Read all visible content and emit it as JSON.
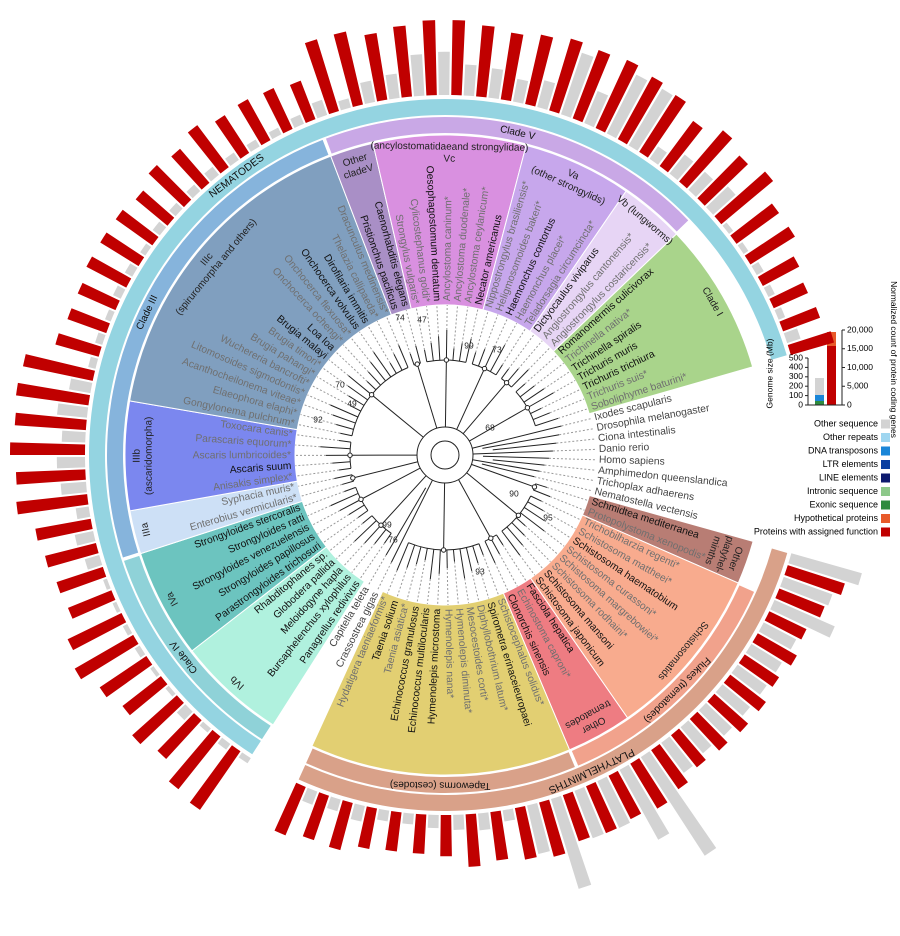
{
  "sectors": [
    {
      "species": [
        {
          "name": "Ixodes scapularis"
        },
        {
          "name": "Drosophila melanogaster"
        },
        {
          "name": "Ciona intestinalis"
        },
        {
          "name": "Danio rerio"
        },
        {
          "name": "Homo sapiens"
        },
        {
          "name": "Amphimedon queenslandica"
        },
        {
          "name": "Trichoplax adhaerens"
        },
        {
          "name": "Nematostella vectensis"
        }
      ]
    },
    {
      "label": [
        "Other",
        "platyhel-",
        "minths"
      ],
      "color": "#b87d74",
      "species": [
        {
          "name": "Schmidtea mediterranea",
          "genome_mb": 780,
          "genes": 16000
        },
        {
          "name": "Protopolystoma xenopodis*",
          "genome_mb": 550,
          "genes": 13000
        }
      ]
    },
    {
      "label": [
        "Schistosomatids"
      ],
      "color": "#f8ab8e",
      "species": [
        {
          "name": "Trichobilharzia regenti*",
          "genome_mb": 700,
          "genes": 11000
        },
        {
          "name": "Schistosoma mattheei*",
          "genome_mb": 390,
          "genes": 12000
        },
        {
          "name": "Schistosoma haematobium",
          "genome_mb": 380,
          "genes": 11000
        },
        {
          "name": "Schistosoma curassoni*",
          "genome_mb": 380,
          "genes": 12000
        },
        {
          "name": "Schistosoma margrebowiei*",
          "genome_mb": 380,
          "genes": 12000
        },
        {
          "name": "Schistosoma rodhaini*",
          "genome_mb": 380,
          "genes": 11500
        },
        {
          "name": "Schistosoma mansoni",
          "genome_mb": 365,
          "genes": 11000
        },
        {
          "name": "Schistosoma japonicum",
          "genome_mb": 400,
          "genes": 12700
        }
      ]
    },
    {
      "label": [
        "Other",
        "trematodes"
      ],
      "color": "#ee7c82",
      "species": [
        {
          "name": "Fasciola hepatica",
          "genome_mb": 1250,
          "genes": 14000
        },
        {
          "name": "Echinostoma caproni*",
          "genome_mb": 850,
          "genes": 13000
        },
        {
          "name": "Clonorchis sinensis",
          "genome_mb": 550,
          "genes": 13600
        }
      ]
    },
    {
      "color": "#e2cf72",
      "species": [
        {
          "name": "Schistocephalus solidus*",
          "genome_mb": 540,
          "genes": 13000
        },
        {
          "name": "Spirometra erinaceieuropaei",
          "genome_mb": 1000,
          "genes": 15000
        },
        {
          "name": "Diphyllobothrium latum*",
          "genome_mb": 530,
          "genes": 14000
        },
        {
          "name": "Mesocestoides corti*",
          "genome_mb": 120,
          "genes": 13000
        },
        {
          "name": "Hymenolepis diminuta*",
          "genome_mb": 180,
          "genes": 14000
        },
        {
          "name": "Hymenolepis nana*",
          "genome_mb": 160,
          "genes": 11000
        },
        {
          "name": "Hymenolepis microstoma",
          "genome_mb": 140,
          "genes": 10500
        },
        {
          "name": "Echinococcus multilocularis",
          "genome_mb": 115,
          "genes": 10500
        },
        {
          "name": "Echinococcus granulosus",
          "genome_mb": 115,
          "genes": 11000
        },
        {
          "name": "Taenia asiatica*",
          "genome_mb": 170,
          "genes": 13000
        },
        {
          "name": "Taenia solium",
          "genome_mb": 130,
          "genes": 12500
        },
        {
          "name": "Hydatigera taeniaeformis*",
          "genome_mb": 150,
          "genes": 14000
        }
      ]
    },
    {
      "species": [
        {
          "name": "Crassostrea gigas"
        },
        {
          "name": "Capitella teleta"
        }
      ]
    },
    {
      "label": [
        "IVb"
      ],
      "color": "#b0f1de",
      "species": [
        {
          "name": "Panagrellus redivivus",
          "genome_mb": 65,
          "genes": 19000
        },
        {
          "name": "Bursaphelenchus xylophilus",
          "genome_mb": 75,
          "genes": 18000
        },
        {
          "name": "Meloidogyne hapla",
          "genome_mb": 55,
          "genes": 14000
        },
        {
          "name": "Globodera pallida",
          "genome_mb": 125,
          "genes": 16000
        },
        {
          "name": "Rhabditophanes sp.",
          "genome_mb": 45,
          "genes": 13000
        }
      ]
    },
    {
      "label": [
        "IVa"
      ],
      "color": "#6cc4bf",
      "species": [
        {
          "name": "Parastrongyloides trichosuri",
          "genome_mb": 42,
          "genes": 15000
        },
        {
          "name": "Strongyloides papillosus",
          "genome_mb": 60,
          "genes": 18000
        },
        {
          "name": "Strongyloides venezuelensis",
          "genome_mb": 52,
          "genes": 16000
        },
        {
          "name": "Strongyloides ratti",
          "genome_mb": 43,
          "genes": 12500
        },
        {
          "name": "Strongyloides stercoralis",
          "genome_mb": 43,
          "genes": 13000
        }
      ]
    },
    {
      "label": [
        "IIIa"
      ],
      "color": "#cde0f6",
      "species": [
        {
          "name": "Enterobius vermicularis*",
          "genome_mb": 160,
          "genes": 14000
        },
        {
          "name": "Syphacia muris*",
          "genome_mb": 200,
          "genes": 15000
        }
      ]
    },
    {
      "label": [
        "IIIb",
        "(ascaridomorpha)"
      ],
      "color": "#7b87ef",
      "species": [
        {
          "name": "Anisakis simplex*",
          "genome_mb": 140,
          "genes": 19000
        },
        {
          "name": "Ascaris suum",
          "genome_mb": 270,
          "genes": 18500
        },
        {
          "name": "Ascaris lumbricoides*",
          "genome_mb": 300,
          "genes": 20000
        },
        {
          "name": "Parascaris equorum*",
          "genome_mb": 250,
          "genes": 19000
        },
        {
          "name": "Toxocara canis*",
          "genome_mb": 320,
          "genes": 19500
        }
      ]
    },
    {
      "label": [
        "IIIc",
        "(spiruromorpha and others)"
      ],
      "color": "#809fbf",
      "species": [
        {
          "name": "Gongylonema pulchrum*",
          "genome_mb": 230,
          "genes": 19000
        },
        {
          "name": "Elaeophora elaphi*",
          "genome_mb": 80,
          "genes": 12000
        },
        {
          "name": "Acanthocheilonema viteae*",
          "genome_mb": 80,
          "genes": 11000
        },
        {
          "name": "Litomosoides sigmodontis*",
          "genome_mb": 65,
          "genes": 11000
        },
        {
          "name": "Wuchereria bancrofti*",
          "genome_mb": 90,
          "genes": 12000
        },
        {
          "name": "Brugia pahangi*",
          "genome_mb": 90,
          "genes": 12000
        },
        {
          "name": "Brugia timori*",
          "genome_mb": 65,
          "genes": 12000
        },
        {
          "name": "Brugia malayi",
          "genome_mb": 95,
          "genes": 11000
        },
        {
          "name": "Loa loa",
          "genome_mb": 90,
          "genes": 13000
        },
        {
          "name": "Onchocerca ochengi*",
          "genome_mb": 95,
          "genes": 12000
        },
        {
          "name": "Onchocerca flexuosa*",
          "genome_mb": 110,
          "genes": 14000
        },
        {
          "name": "Onchocerca volvulus",
          "genome_mb": 95,
          "genes": 12000
        },
        {
          "name": "Dirofilaria immitis",
          "genome_mb": 85,
          "genes": 12500
        },
        {
          "name": "Thelazia callipaeda*",
          "genome_mb": 80,
          "genes": 12000
        },
        {
          "name": "Dracunculus medinensis*",
          "genome_mb": 105,
          "genes": 11000
        }
      ]
    },
    {
      "label": [
        "Other",
        "cladeV"
      ],
      "color": "#a98fc6",
      "species": [
        {
          "name": "Pristionchus pacificus",
          "genome_mb": 170,
          "genes": 20000
        },
        {
          "name": "Caenorhabditis elegans",
          "genome_mb": 100,
          "genes": 20000
        }
      ]
    },
    {
      "label": [
        "(ancylostomatidaeand strongylidae)",
        "Vc"
      ],
      "color": "#d990e0",
      "species": [
        {
          "name": "Strongylus vulgaris*",
          "genome_mb": 230,
          "genes": 18000
        },
        {
          "name": "Cylicostephanus goldi*",
          "genome_mb": 260,
          "genes": 19000
        },
        {
          "name": "Oesophagostomum dentatum",
          "genome_mb": 440,
          "genes": 20000
        },
        {
          "name": "Ancylostoma caninum*",
          "genome_mb": 460,
          "genes": 20000
        },
        {
          "name": "Ancylostoma duodenale*",
          "genome_mb": 330,
          "genes": 19000
        },
        {
          "name": "Ancylostoma ceylanicum*",
          "genome_mb": 315,
          "genes": 18000
        },
        {
          "name": "Necator americanus",
          "genome_mb": 245,
          "genes": 19000
        }
      ]
    },
    {
      "label": [
        "Va",
        "(other strongylids)"
      ],
      "color": "#c7a7ec",
      "species": [
        {
          "name": "Nippostrongylus brasiliensis*",
          "genome_mb": 295,
          "genes": 20000
        },
        {
          "name": "Heligmosomoides bakeri*",
          "genome_mb": 690,
          "genes": 19500
        },
        {
          "name": "Haemonchus contortus",
          "genome_mb": 370,
          "genes": 20000
        },
        {
          "name": "Haemonchus placei*",
          "genome_mb": 700,
          "genes": 19000
        },
        {
          "name": "Teladorsagia circumcincta*",
          "genome_mb": 700,
          "genes": 18000
        }
      ]
    },
    {
      "label": [
        "Vb (lungworms)"
      ],
      "color": "#e7d5f5",
      "species": [
        {
          "name": "Dictyocaulus viviparus",
          "genome_mb": 160,
          "genes": 15000
        },
        {
          "name": "Angiostrongylus cantonensis*",
          "genome_mb": 260,
          "genes": 18000
        },
        {
          "name": "Angiostrongylus costaricensis*",
          "genome_mb": 260,
          "genes": 16000
        }
      ]
    },
    {
      "label": [
        "Clade I"
      ],
      "color": "#a9d48b",
      "species": [
        {
          "name": "Romanomermis culicivorax",
          "genome_mb": 320,
          "genes": 18000
        },
        {
          "name": "Trichinella nativa*",
          "genome_mb": 55,
          "genes": 14000
        },
        {
          "name": "Trichinella spiralis",
          "genome_mb": 60,
          "genes": 14000
        },
        {
          "name": "Trichuris muris",
          "genome_mb": 85,
          "genes": 11000
        },
        {
          "name": "Trichuris trichiura",
          "genome_mb": 75,
          "genes": 10000
        },
        {
          "name": "Trichuris suis*",
          "genome_mb": 75,
          "genes": 10500
        },
        {
          "name": "Soboliphyme baturini*",
          "genome_mb": 150,
          "genes": 12000
        }
      ]
    }
  ],
  "bands": [
    {
      "label": "Clade III",
      "color": "#86b4dc"
    },
    {
      "label": "Clade V",
      "color": "#c9a8e6"
    },
    {
      "label": "Clade IV",
      "color": "#8fd2d8"
    },
    {
      "label": "Flukes (trematodes)",
      "color": "#f1a28c"
    },
    {
      "label": "Tapeworms (cestodes)",
      "color": "#d9a189"
    }
  ],
  "phyla": [
    {
      "label": "NEMATODES",
      "color": "#94d4e1"
    },
    {
      "label": "PLATYHELMINTHS",
      "color": "#d9a189"
    }
  ],
  "bootstrap": [
    74,
    47,
    99,
    73,
    70,
    49,
    92,
    99,
    76,
    90,
    95,
    93,
    68
  ],
  "genome_axis": {
    "label": "Genome size (Mb)",
    "lim": [
      0,
      500
    ],
    "ticks": [
      0,
      100,
      200,
      300,
      400,
      500
    ]
  },
  "genes_axis": {
    "label": "Normalized count of protein coding genes",
    "lim": [
      0,
      20000
    ],
    "ticks": [
      0,
      {
        "value": 5000,
        "label": "5,000"
      },
      {
        "value": 10000,
        "label": "10,000"
      },
      {
        "value": 15000,
        "label": "15,000"
      },
      {
        "value": 20000,
        "label": "20,000"
      }
    ]
  },
  "legend": [
    {
      "label": "Other sequence",
      "color": "#d3d3d3"
    },
    {
      "label": "Other repeats",
      "color": "#9fd6f0"
    },
    {
      "label": "DNA transposons",
      "color": "#1a86d8"
    },
    {
      "label": "LTR elements",
      "color": "#0a3fa0"
    },
    {
      "label": "LINE elements",
      "color": "#0d1a6e"
    },
    {
      "label": "Intronic sequence",
      "color": "#8dc88a"
    },
    {
      "label": "Exonic sequence",
      "color": "#2e8b3e"
    },
    {
      "label": "Hypothetical proteins",
      "color": "#e85a2a"
    },
    {
      "label": "Proteins with assigned function",
      "color": "#c00000"
    }
  ]
}
